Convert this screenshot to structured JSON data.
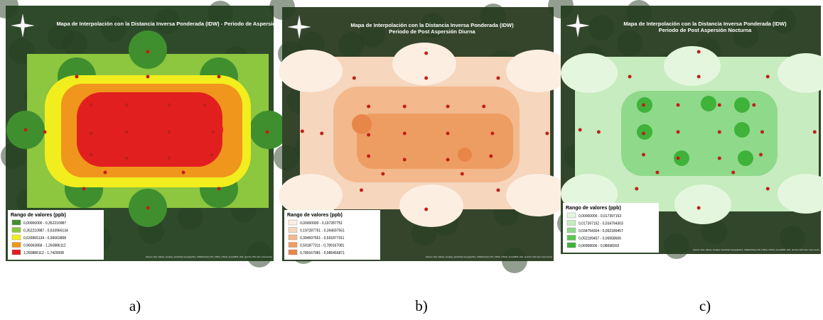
{
  "panels": [
    {
      "title": [
        "Mapa de Interpolación con la Distancia Inversa Ponderada (IDW) - Periodo de Aspersión"
      ],
      "legend_title": "Rango de valores (ppb)",
      "legend": [
        "0,00000000 - 0,352210987",
        "0,352210987 - 0,633965134",
        "0,633965134 - 0,96063858",
        "0,96063858 - 1,260886112",
        "1,260886112 - 1,7420008"
      ],
      "attribution": "Source: Esri, Maxar, GeoEye, Earthstar Geographics, CNES/Airbus DS, USDA, USGS, AeroGRID, IGN, and the GIS User Community",
      "caption": "a)"
    },
    {
      "title": [
        "Mapa de Interpolación con la Distancia Inversa Ponderada (IDW)",
        "Periodo de Post Aspersión Diurna"
      ],
      "legend_title": "Rango de valores (ppb)",
      "legend": [
        "0,00000000 - 0,197287751",
        "0,197287751 - 0,394597551",
        "0,394597551 - 0,591877311",
        "0,591877311 - 0,789167081",
        "0,789167081 - 0,986456871"
      ],
      "attribution": "Source: Esri, Maxar, GeoEye, Earthstar Geographics, CNES/Airbus DS, USDA, USGS, AeroGRID, IGN, and the GIS User Community",
      "caption": "b)"
    },
    {
      "title": [
        "Mapa de Interpolación con la Distancia Inversa Ponderada (IDW)",
        "Periodo de Post Aspersión Nocturna"
      ],
      "legend_title": "Rango de valores (ppb)",
      "legend": [
        "0,00000000 - 0,017397153",
        "0,017397152 - 0,034794303",
        "0,034794304 - 0,052189457",
        "0,052189457 - 0,06958606",
        "0,06958606 - 0,08698302"
      ],
      "attribution": "Source: Esri, Maxar, GeoEye, Earthstar Geographics, CNES/Airbus DS, USDA, USGS, AeroGRID, IGN, and the GIS User Community",
      "caption": "c)"
    }
  ]
}
